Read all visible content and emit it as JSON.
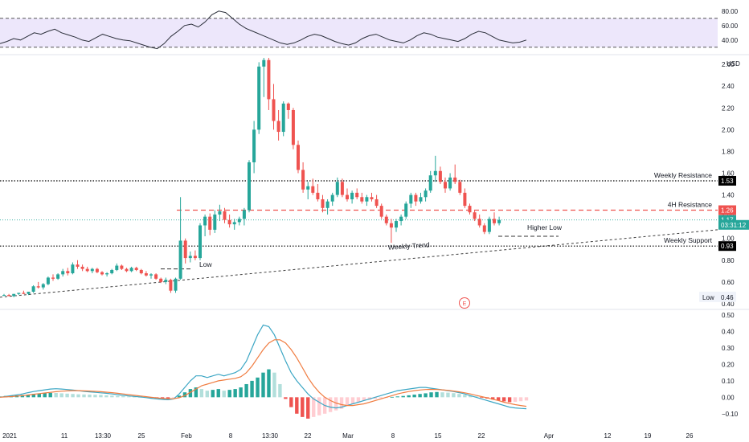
{
  "chart_data": {
    "type": "candlestick",
    "currency": "USD",
    "x_ticks": [
      "2021",
      "11",
      "13:30",
      "25",
      "Feb",
      "8",
      "13:30",
      "22",
      "Mar",
      "8",
      "15",
      "22",
      "Apr",
      "12",
      "19",
      "26"
    ],
    "price_axis": {
      "ticks": [
        "2.60",
        "2.40",
        "2.20",
        "2.00",
        "1.80",
        "1.60",
        "1.40",
        "1.20",
        "1.00",
        "0.80",
        "0.60",
        "0.40"
      ],
      "range": [
        0.37,
        2.66
      ]
    },
    "rsi_axis": {
      "ticks": [
        "80.00",
        "60.00",
        "40.00"
      ],
      "range": [
        22,
        92
      ],
      "band": [
        30,
        70
      ]
    },
    "macd_axis": {
      "ticks": [
        "0.50",
        "0.40",
        "0.30",
        "0.20",
        "0.10",
        "0.00",
        "−0.10"
      ],
      "range": [
        -0.15,
        0.52
      ]
    },
    "price_tags": [
      {
        "text": "1.53",
        "value": 1.53,
        "bg": "#000000"
      },
      {
        "text": "1.26",
        "value": 1.26,
        "bg": "#ef5350"
      },
      {
        "text": "1.17",
        "value": 1.17,
        "bg": "#26a69a"
      },
      {
        "text": "03:31:12",
        "value": 1.125,
        "bg": "#26a69a"
      },
      {
        "text": "0.93",
        "value": 0.93,
        "bg": "#000000"
      }
    ],
    "low_label": {
      "text": "Low",
      "value_text": "0.46"
    },
    "annotations": {
      "weekly_resistance": {
        "text": "Weekly Resistance",
        "value": 1.53
      },
      "resistance_4h": {
        "text": "4H Resistance",
        "value": 1.26
      },
      "weekly_support": {
        "text": "Weekly Support",
        "value": 0.93
      },
      "weekly_trend": {
        "text": "Weekly Trend"
      },
      "low": {
        "text": "Low"
      },
      "higher_low": {
        "text": "Higher Low"
      },
      "earnings_marker": {
        "text": "E"
      }
    },
    "candles": [
      [
        0.48,
        0.49,
        0.47,
        0.48
      ],
      [
        0.48,
        0.49,
        0.47,
        0.47
      ],
      [
        0.47,
        0.49,
        0.46,
        0.49
      ],
      [
        0.49,
        0.5,
        0.48,
        0.5
      ],
      [
        0.5,
        0.52,
        0.49,
        0.49
      ],
      [
        0.49,
        0.51,
        0.48,
        0.51
      ],
      [
        0.51,
        0.57,
        0.5,
        0.56
      ],
      [
        0.56,
        0.6,
        0.54,
        0.55
      ],
      [
        0.55,
        0.59,
        0.53,
        0.58
      ],
      [
        0.58,
        0.65,
        0.57,
        0.64
      ],
      [
        0.64,
        0.67,
        0.61,
        0.63
      ],
      [
        0.63,
        0.68,
        0.62,
        0.67
      ],
      [
        0.67,
        0.72,
        0.65,
        0.7
      ],
      [
        0.7,
        0.73,
        0.66,
        0.68
      ],
      [
        0.68,
        0.78,
        0.67,
        0.76
      ],
      [
        0.76,
        0.8,
        0.72,
        0.74
      ],
      [
        0.74,
        0.76,
        0.7,
        0.72
      ],
      [
        0.72,
        0.74,
        0.69,
        0.7
      ],
      [
        0.7,
        0.73,
        0.68,
        0.72
      ],
      [
        0.72,
        0.73,
        0.68,
        0.69
      ],
      [
        0.69,
        0.7,
        0.66,
        0.67
      ],
      [
        0.67,
        0.69,
        0.65,
        0.68
      ],
      [
        0.68,
        0.72,
        0.67,
        0.71
      ],
      [
        0.71,
        0.77,
        0.7,
        0.75
      ],
      [
        0.75,
        0.76,
        0.71,
        0.72
      ],
      [
        0.72,
        0.73,
        0.69,
        0.7
      ],
      [
        0.7,
        0.74,
        0.69,
        0.73
      ],
      [
        0.73,
        0.74,
        0.7,
        0.71
      ],
      [
        0.71,
        0.72,
        0.67,
        0.68
      ],
      [
        0.68,
        0.7,
        0.65,
        0.66
      ],
      [
        0.66,
        0.68,
        0.63,
        0.67
      ],
      [
        0.67,
        0.68,
        0.62,
        0.63
      ],
      [
        0.63,
        0.64,
        0.59,
        0.6
      ],
      [
        0.6,
        0.64,
        0.58,
        0.62
      ],
      [
        0.62,
        0.63,
        0.5,
        0.52
      ],
      [
        0.52,
        0.64,
        0.5,
        0.63
      ],
      [
        0.63,
        1.38,
        0.62,
        0.98
      ],
      [
        0.98,
        1.0,
        0.77,
        0.82
      ],
      [
        0.82,
        0.88,
        0.78,
        0.84
      ],
      [
        0.84,
        0.89,
        0.8,
        0.82
      ],
      [
        0.82,
        1.14,
        0.8,
        1.12
      ],
      [
        1.12,
        1.22,
        1.02,
        1.2
      ],
      [
        1.2,
        1.23,
        1.03,
        1.08
      ],
      [
        1.08,
        1.26,
        1.05,
        1.22
      ],
      [
        1.22,
        1.31,
        1.16,
        1.25
      ],
      [
        1.25,
        1.28,
        1.14,
        1.17
      ],
      [
        1.17,
        1.22,
        1.1,
        1.13
      ],
      [
        1.13,
        1.18,
        1.08,
        1.15
      ],
      [
        1.15,
        1.2,
        1.12,
        1.18
      ],
      [
        1.18,
        1.28,
        1.12,
        1.26
      ],
      [
        1.26,
        1.72,
        1.24,
        1.7
      ],
      [
        1.7,
        2.08,
        1.6,
        2.0
      ],
      [
        2.0,
        2.62,
        1.96,
        2.58
      ],
      [
        2.58,
        2.66,
        2.3,
        2.64
      ],
      [
        2.64,
        2.66,
        2.18,
        2.28
      ],
      [
        2.28,
        2.42,
        2.0,
        2.08
      ],
      [
        2.08,
        2.18,
        1.9,
        1.98
      ],
      [
        1.98,
        2.26,
        1.94,
        2.24
      ],
      [
        2.24,
        2.25,
        2.1,
        2.18
      ],
      [
        2.18,
        2.2,
        1.82,
        1.86
      ],
      [
        1.86,
        1.9,
        1.6,
        1.63
      ],
      [
        1.63,
        1.7,
        1.42,
        1.45
      ],
      [
        1.45,
        1.52,
        1.36,
        1.48
      ],
      [
        1.48,
        1.55,
        1.4,
        1.42
      ],
      [
        1.42,
        1.5,
        1.34,
        1.36
      ],
      [
        1.36,
        1.4,
        1.24,
        1.28
      ],
      [
        1.28,
        1.36,
        1.22,
        1.34
      ],
      [
        1.34,
        1.42,
        1.3,
        1.4
      ],
      [
        1.4,
        1.56,
        1.38,
        1.52
      ],
      [
        1.52,
        1.55,
        1.38,
        1.4
      ],
      [
        1.4,
        1.46,
        1.34,
        1.36
      ],
      [
        1.36,
        1.44,
        1.32,
        1.42
      ],
      [
        1.42,
        1.46,
        1.36,
        1.38
      ],
      [
        1.38,
        1.42,
        1.32,
        1.34
      ],
      [
        1.34,
        1.4,
        1.3,
        1.38
      ],
      [
        1.38,
        1.42,
        1.34,
        1.36
      ],
      [
        1.36,
        1.4,
        1.28,
        1.3
      ],
      [
        1.3,
        1.32,
        1.18,
        1.2
      ],
      [
        1.2,
        1.22,
        1.12,
        1.14
      ],
      [
        1.14,
        1.18,
        0.96,
        1.1
      ],
      [
        1.1,
        1.18,
        1.06,
        1.16
      ],
      [
        1.16,
        1.22,
        1.12,
        1.2
      ],
      [
        1.2,
        1.34,
        1.18,
        1.32
      ],
      [
        1.32,
        1.42,
        1.28,
        1.4
      ],
      [
        1.4,
        1.42,
        1.3,
        1.34
      ],
      [
        1.34,
        1.42,
        1.32,
        1.38
      ],
      [
        1.38,
        1.46,
        1.34,
        1.44
      ],
      [
        1.44,
        1.62,
        1.42,
        1.58
      ],
      [
        1.58,
        1.76,
        1.52,
        1.62
      ],
      [
        1.62,
        1.66,
        1.5,
        1.52
      ],
      [
        1.52,
        1.56,
        1.42,
        1.46
      ],
      [
        1.46,
        1.6,
        1.44,
        1.56
      ],
      [
        1.56,
        1.68,
        1.5,
        1.52
      ],
      [
        1.52,
        1.54,
        1.4,
        1.42
      ],
      [
        1.42,
        1.46,
        1.28,
        1.3
      ],
      [
        1.3,
        1.32,
        1.22,
        1.24
      ],
      [
        1.24,
        1.26,
        1.16,
        1.18
      ],
      [
        1.18,
        1.22,
        1.1,
        1.12
      ],
      [
        1.12,
        1.14,
        1.04,
        1.06
      ],
      [
        1.06,
        1.2,
        1.04,
        1.18
      ],
      [
        1.18,
        1.24,
        1.12,
        1.14
      ],
      [
        1.14,
        1.2,
        1.12,
        1.17
      ]
    ],
    "rsi": [
      35,
      38,
      42,
      40,
      45,
      50,
      48,
      52,
      55,
      50,
      47,
      44,
      40,
      38,
      43,
      48,
      45,
      42,
      40,
      39,
      36,
      33,
      30,
      28,
      35,
      45,
      52,
      60,
      62,
      58,
      65,
      75,
      80,
      78,
      70,
      62,
      56,
      52,
      48,
      44,
      40,
      36,
      34,
      36,
      40,
      45,
      48,
      46,
      42,
      38,
      35,
      33,
      36,
      42,
      46,
      48,
      44,
      40,
      38,
      36,
      40,
      46,
      50,
      48,
      44,
      42,
      40,
      38,
      42,
      48,
      52,
      50,
      45,
      40,
      38,
      36,
      37,
      40
    ],
    "macd": {
      "histogram": [
        0.005,
        0.008,
        0.01,
        0.012,
        0.014,
        0.016,
        0.02,
        0.022,
        0.025,
        0.027,
        0.026,
        0.024,
        0.022,
        0.02,
        0.018,
        0.017,
        0.016,
        0.015,
        0.014,
        0.012,
        0.01,
        0.008,
        0.006,
        0.004,
        0.003,
        0.002,
        0.001,
        -0.002,
        -0.004,
        -0.006,
        -0.008,
        -0.004,
        0.01,
        0.03,
        0.05,
        0.06,
        0.05,
        0.04,
        0.045,
        0.05,
        0.04,
        0.045,
        0.05,
        0.06,
        0.08,
        0.1,
        0.12,
        0.15,
        0.17,
        0.15,
        0.08,
        -0.01,
        -0.06,
        -0.1,
        -0.12,
        -0.13,
        -0.12,
        -0.11,
        -0.1,
        -0.09,
        -0.08,
        -0.07,
        -0.05,
        -0.04,
        -0.03,
        -0.02,
        -0.015,
        -0.01,
        -0.005,
        -0.002,
        0.002,
        0.005,
        0.008,
        0.012,
        0.016,
        0.02,
        0.024,
        0.03,
        0.032,
        0.03,
        0.028,
        0.025,
        0.02,
        0.015,
        0.01,
        0.005,
        -0.002,
        -0.008,
        -0.014,
        -0.02,
        -0.025,
        -0.03,
        -0.028,
        -0.024,
        -0.02
      ],
      "macd_line": [
        0,
        0.005,
        0.01,
        0.015,
        0.02,
        0.028,
        0.035,
        0.04,
        0.045,
        0.05,
        0.052,
        0.05,
        0.047,
        0.044,
        0.04,
        0.036,
        0.033,
        0.03,
        0.027,
        0.024,
        0.02,
        0.016,
        0.012,
        0.008,
        0.005,
        0.002,
        -0.002,
        -0.006,
        -0.01,
        -0.013,
        -0.015,
        -0.01,
        0.02,
        0.06,
        0.1,
        0.13,
        0.13,
        0.12,
        0.13,
        0.14,
        0.13,
        0.14,
        0.15,
        0.17,
        0.22,
        0.3,
        0.38,
        0.44,
        0.43,
        0.38,
        0.3,
        0.22,
        0.15,
        0.1,
        0.06,
        0.02,
        -0.01,
        -0.03,
        -0.05,
        -0.06,
        -0.065,
        -0.06,
        -0.05,
        -0.04,
        -0.03,
        -0.02,
        -0.01,
        0,
        0.01,
        0.02,
        0.03,
        0.04,
        0.045,
        0.05,
        0.055,
        0.06,
        0.06,
        0.055,
        0.05,
        0.045,
        0.04,
        0.035,
        0.028,
        0.02,
        0.01,
        0,
        -0.01,
        -0.02,
        -0.03,
        -0.04,
        -0.05,
        -0.06,
        -0.065,
        -0.068,
        -0.07
      ],
      "signal_line": [
        0,
        0.002,
        0.004,
        0.007,
        0.01,
        0.014,
        0.018,
        0.022,
        0.026,
        0.03,
        0.034,
        0.037,
        0.039,
        0.04,
        0.04,
        0.039,
        0.038,
        0.036,
        0.034,
        0.031,
        0.028,
        0.024,
        0.02,
        0.016,
        0.012,
        0.008,
        0.004,
        0,
        -0.004,
        -0.007,
        -0.009,
        -0.009,
        -0.003,
        0.01,
        0.03,
        0.05,
        0.07,
        0.08,
        0.09,
        0.1,
        0.105,
        0.11,
        0.115,
        0.125,
        0.15,
        0.19,
        0.24,
        0.29,
        0.33,
        0.35,
        0.35,
        0.33,
        0.29,
        0.24,
        0.18,
        0.12,
        0.07,
        0.03,
        0,
        -0.02,
        -0.035,
        -0.045,
        -0.05,
        -0.05,
        -0.045,
        -0.04,
        -0.03,
        -0.02,
        -0.01,
        0,
        0.01,
        0.02,
        0.028,
        0.035,
        0.04,
        0.044,
        0.047,
        0.048,
        0.047,
        0.045,
        0.042,
        0.038,
        0.033,
        0.027,
        0.02,
        0.012,
        0.004,
        -0.004,
        -0.012,
        -0.02,
        -0.03,
        -0.038,
        -0.045,
        -0.05,
        -0.055
      ]
    },
    "colors": {
      "up": "#26a69a",
      "down": "#ef5350",
      "rsi_line": "#2a2e39",
      "rsi_band": "#ede7fb",
      "macd_line": "#3ba6c4",
      "signal_line": "#f07c40",
      "hist_up_strong": "#26a69a",
      "hist_up_weak": "#b2dfdb",
      "hist_down_strong": "#ef5350",
      "hist_down_weak": "#ffcdd2",
      "resistance_red": "#ef5350",
      "current_price": "#26a69a"
    }
  }
}
